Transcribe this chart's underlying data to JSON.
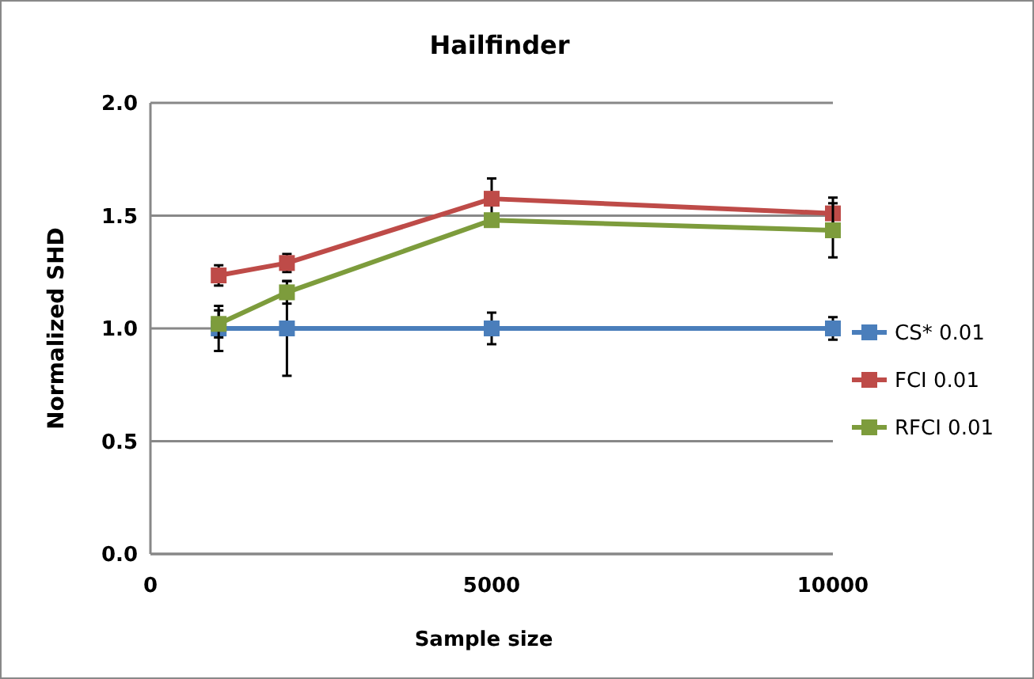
{
  "chart_data": {
    "type": "line",
    "title": "Hailfinder",
    "xlabel": "Sample size",
    "ylabel": "Normalized SHD",
    "x": [
      1000,
      2000,
      5000,
      10000
    ],
    "series": [
      {
        "name": "CS* 0.01",
        "color": "#4a7ebb",
        "values": [
          1.0,
          1.0,
          1.0,
          1.0
        ],
        "errors": [
          0.1,
          0.21,
          0.07,
          0.05
        ]
      },
      {
        "name": "FCI 0.01",
        "color": "#be4b48",
        "values": [
          1.235,
          1.29,
          1.575,
          1.51
        ],
        "errors": [
          0.045,
          0.04,
          0.09,
          0.07
        ]
      },
      {
        "name": "RFCI 0.01",
        "color": "#7d9c3c",
        "values": [
          1.02,
          1.16,
          1.48,
          1.435
        ],
        "errors": [
          0.06,
          0.05,
          null,
          0.12
        ]
      }
    ],
    "xlim": [
      0,
      10000
    ],
    "xticks": [
      0,
      5000,
      10000
    ],
    "ylim": [
      0,
      2
    ],
    "yticks": [
      {
        "value": 0,
        "label": "0.0"
      },
      {
        "value": 0.5,
        "label": "0.5"
      },
      {
        "value": 1,
        "label": "1.0"
      },
      {
        "value": 1.5,
        "label": "1.5"
      },
      {
        "value": 2,
        "label": "2.0"
      }
    ],
    "grid": "y",
    "legend": "right",
    "marker": "square",
    "line_style": "solid"
  }
}
